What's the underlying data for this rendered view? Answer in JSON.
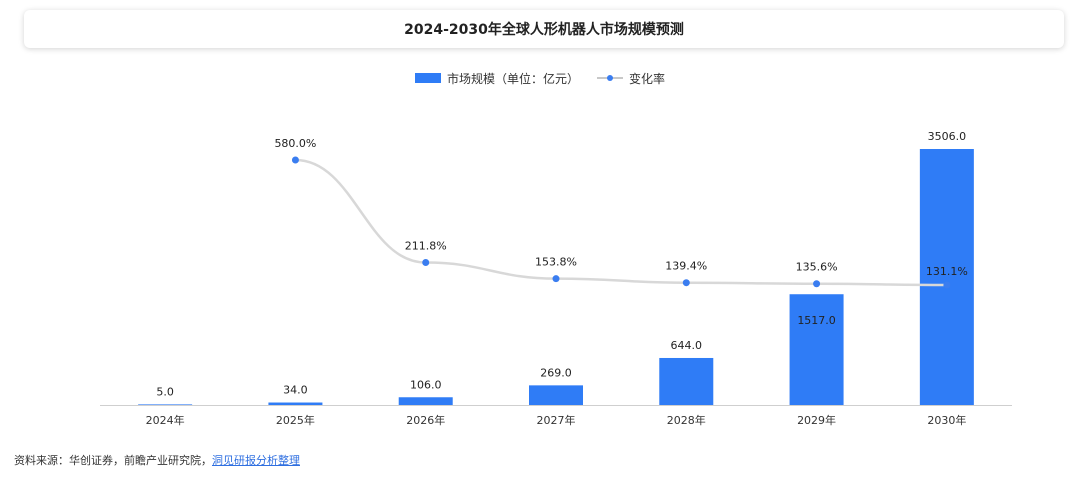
{
  "title": "2024-2030年全球人形机器人市场规模预测",
  "legend": {
    "bar_label": "市场规模（单位：亿元）",
    "line_label": "变化率"
  },
  "footer": {
    "source": "资料来源：华创证券，前瞻产业研究院，",
    "link": "洞见研报分析整理"
  },
  "colors": {
    "bar": "#2f7cf6",
    "line": "#d8d8d8",
    "point": "#3a7df0"
  },
  "chart_data": {
    "type": "bar",
    "categories": [
      "2024年",
      "2025年",
      "2026年",
      "2027年",
      "2028年",
      "2029年",
      "2030年"
    ],
    "series": [
      {
        "name": "市场规模（单位：亿元）",
        "type": "bar",
        "values": [
          5.0,
          34.0,
          106.0,
          269.0,
          644.0,
          1517.0,
          3506.0
        ],
        "labels": [
          "5.0",
          "34.0",
          "106.0",
          "269.0",
          "644.0",
          "1517.0",
          "3506.0"
        ]
      },
      {
        "name": "变化率",
        "type": "line",
        "values": [
          null,
          580.0,
          211.8,
          153.8,
          139.4,
          135.6,
          131.1
        ],
        "labels": [
          "",
          "580.0%",
          "211.8%",
          "153.8%",
          "139.4%",
          "135.6%",
          "131.1%"
        ]
      }
    ],
    "legend_position": "top-center",
    "grid": false
  }
}
